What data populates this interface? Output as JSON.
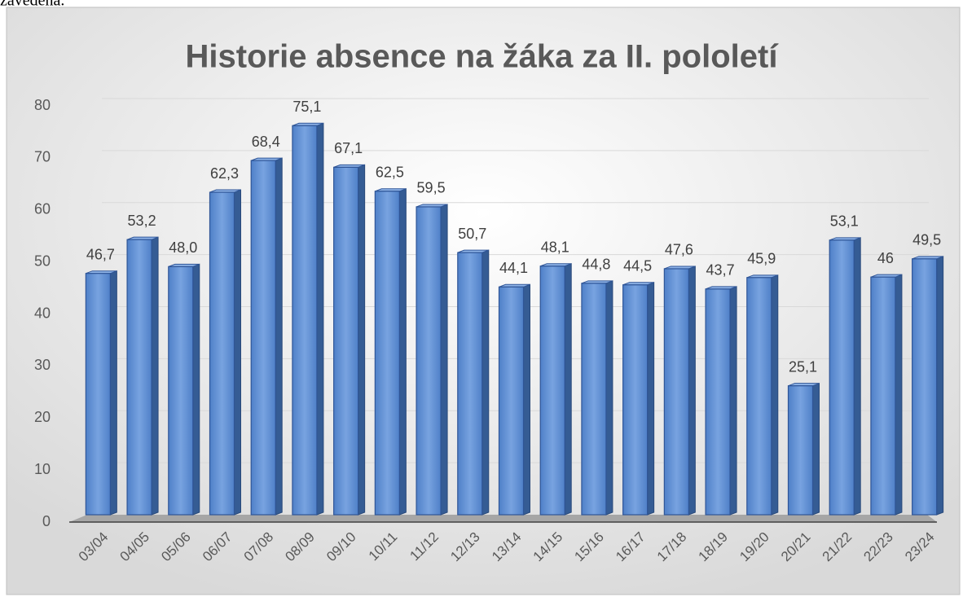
{
  "page_caption": "zavedena.",
  "chart_data": {
    "type": "bar3d",
    "title": "Historie absence na žáka za II. pololetí",
    "categories": [
      "03/04",
      "04/05",
      "05/06",
      "06/07",
      "07/08",
      "08/09",
      "09/10",
      "10/11",
      "11/12",
      "12/13",
      "13/14",
      "14/15",
      "15/16",
      "16/17",
      "17/18",
      "18/19",
      "19/20",
      "20/21",
      "21/22",
      "22/23",
      "23/24"
    ],
    "values": [
      46.7,
      53.2,
      48.0,
      62.3,
      68.4,
      75.1,
      67.1,
      62.5,
      59.5,
      50.7,
      44.1,
      48.1,
      44.8,
      44.5,
      47.6,
      43.7,
      45.9,
      25.1,
      53.1,
      46,
      49.5
    ],
    "value_labels": [
      "46,7",
      "53,2",
      "48,0",
      "62,3",
      "68,4",
      "75,1",
      "67,1",
      "62,5",
      "59,5",
      "50,7",
      "44,1",
      "48,1",
      "44,8",
      "44,5",
      "47,6",
      "43,7",
      "45,9",
      "25,1",
      "53,1",
      "46",
      "49,5"
    ],
    "color": "#5b8fd6",
    "ylim": [
      0,
      80
    ],
    "yticks": [
      0,
      10,
      20,
      30,
      40,
      50,
      60,
      70,
      80
    ],
    "grid": true
  }
}
